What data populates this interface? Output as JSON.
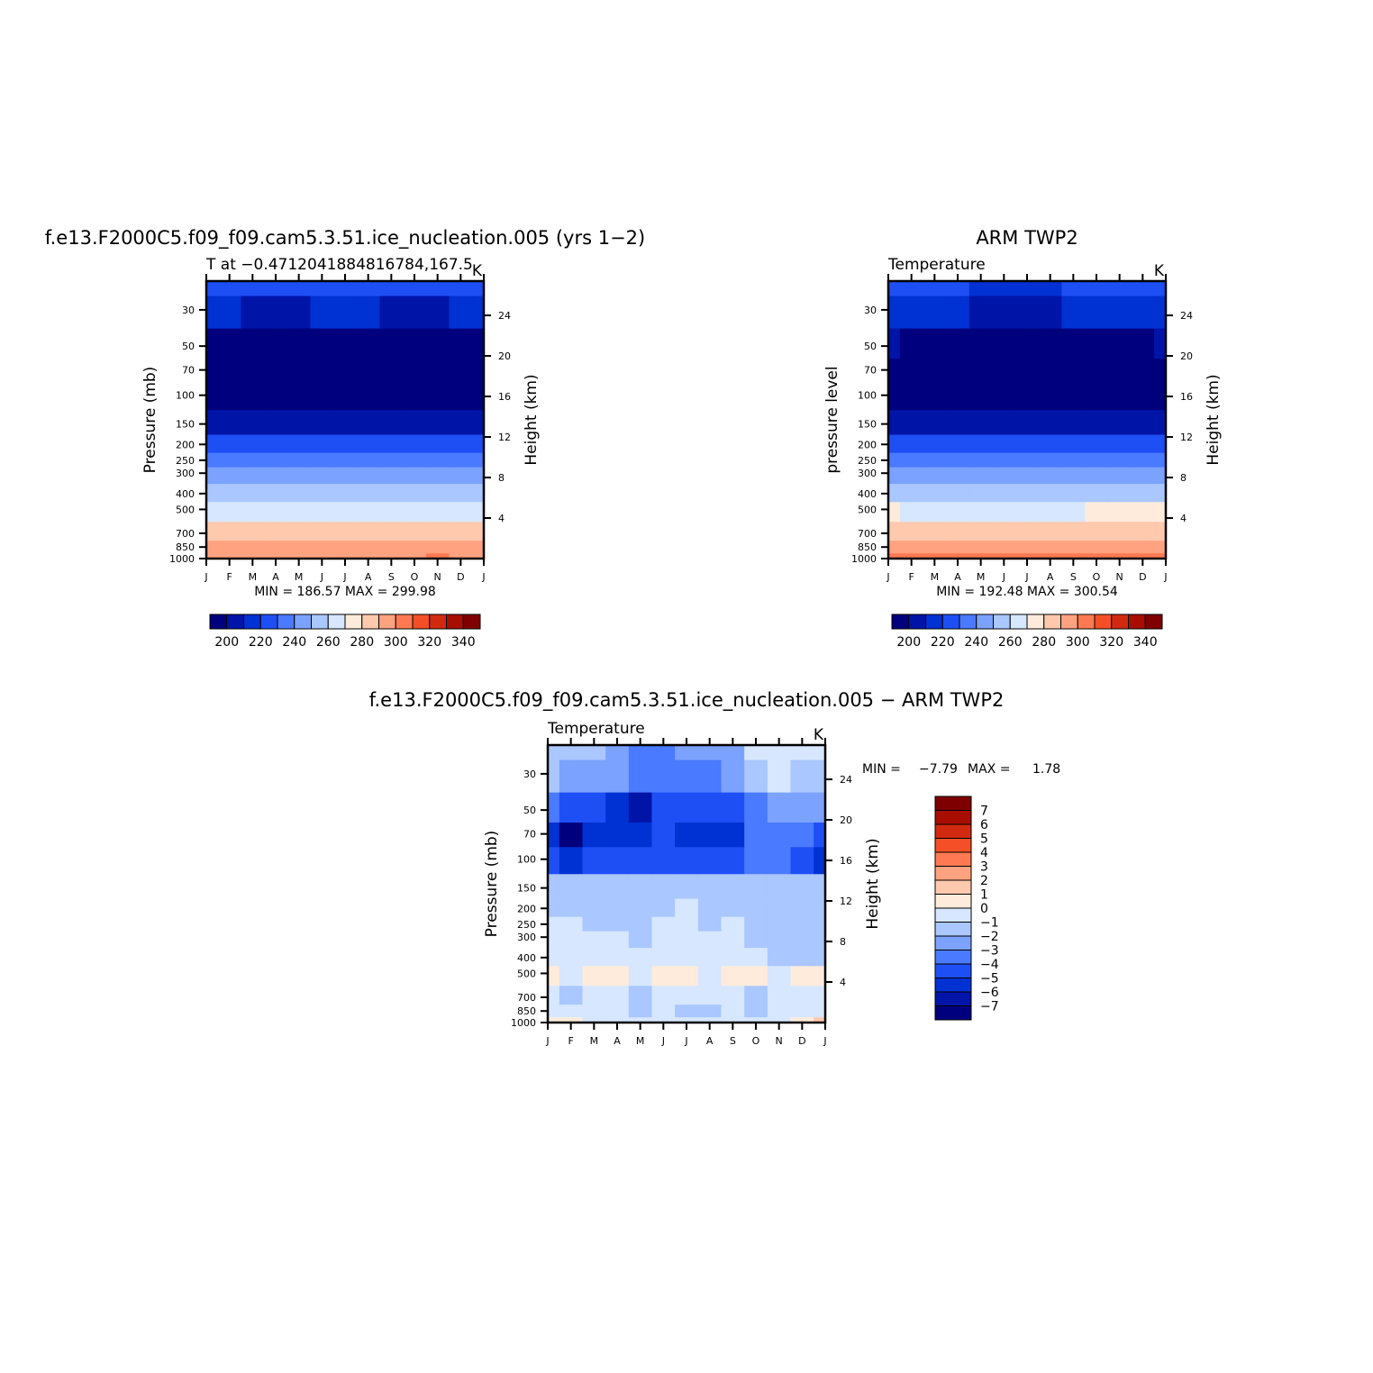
{
  "palette": {
    "temperature": [
      "#00007f",
      "#0015a8",
      "#0031d2",
      "#1e4ff5",
      "#4a7aff",
      "#7ba2ff",
      "#aac7ff",
      "#d6e7ff",
      "#ffebdb",
      "#ffc9ad",
      "#ffa27f",
      "#ff7a52",
      "#f44f26",
      "#d12a11",
      "#a80e00",
      "#7f0000"
    ],
    "difference": [
      "#00007f",
      "#0015a8",
      "#0031d2",
      "#1e4ff5",
      "#4a7aff",
      "#7ba2ff",
      "#aac7ff",
      "#d6e7ff",
      "#ffebdb",
      "#ffc9ad",
      "#ffa27f",
      "#ff7a52",
      "#f44f26",
      "#d12a11",
      "#a80e00",
      "#7f0000"
    ]
  },
  "chart_data": [
    {
      "type": "heatmap",
      "title": "f.e13.F2000C5.f09_f09.cam5.3.51.ice_nucleation.005 (yrs 1−2)",
      "subtitle_left": "T at −0.4712041884816784,167.5",
      "subtitle_right": "K",
      "xlabel": "",
      "ylabel": "Pressure (mb)",
      "ylabel_right": "Height (km)",
      "x_ticks": [
        "J",
        "F",
        "M",
        "A",
        "M",
        "J",
        "J",
        "A",
        "S",
        "O",
        "N",
        "D",
        "J"
      ],
      "y_ticks": [
        "30",
        "50",
        "70",
        "100",
        "150",
        "200",
        "250",
        "300",
        "400",
        "500",
        "700",
        "850",
        "1000"
      ],
      "y_ticks_right": [
        "24",
        "20",
        "16",
        "12",
        "8",
        "4"
      ],
      "x": [
        0,
        1,
        2,
        3,
        4,
        5,
        6,
        7,
        8,
        9,
        10,
        11,
        12
      ],
      "y": [
        1000,
        850,
        700,
        500,
        400,
        300,
        250,
        200,
        150,
        100,
        70,
        50,
        30,
        20
      ],
      "values": [
        [
          299.98,
          299.9,
          299.8,
          299.7,
          299.6,
          299.6,
          299.7,
          299.8,
          299.8,
          299.9,
          300.0,
          299.9,
          299.98
        ],
        [
          294,
          293.8,
          293.6,
          293.5,
          293.4,
          293.4,
          293.5,
          293.6,
          293.7,
          293.8,
          293.9,
          293.9,
          294
        ],
        [
          285,
          284.8,
          284.7,
          284.6,
          284.5,
          284.5,
          284.6,
          284.7,
          284.8,
          284.9,
          285,
          285,
          285
        ],
        [
          268,
          267.9,
          267.8,
          267.7,
          267.7,
          267.6,
          267.7,
          267.8,
          267.9,
          268,
          268,
          268,
          268
        ],
        [
          257,
          256.9,
          256.8,
          256.7,
          256.6,
          256.6,
          256.7,
          256.8,
          256.9,
          257,
          257,
          257,
          257
        ],
        [
          242,
          241.9,
          241.8,
          241.7,
          241.6,
          241.6,
          241.7,
          241.8,
          241.9,
          242,
          242,
          242,
          242
        ],
        [
          233,
          232.9,
          232.8,
          232.7,
          232.6,
          232.6,
          232.7,
          232.8,
          232.9,
          233,
          233,
          233,
          233
        ],
        [
          222,
          221.9,
          221.8,
          221.7,
          221.6,
          221.6,
          221.7,
          221.8,
          221.9,
          222,
          222,
          222,
          222
        ],
        [
          207,
          206.8,
          206.6,
          206.5,
          206.4,
          206.4,
          206.5,
          206.6,
          206.7,
          206.8,
          206.9,
          207,
          207
        ],
        [
          190,
          189.5,
          189,
          188.5,
          188,
          187.5,
          187,
          186.8,
          186.57,
          187,
          188,
          189,
          190
        ],
        [
          192,
          191,
          190,
          189.5,
          189,
          188.5,
          188.5,
          188.2,
          188,
          188.5,
          189,
          190,
          192
        ],
        [
          197,
          196,
          195.5,
          195,
          195,
          195.5,
          196,
          196.5,
          196.8,
          196.5,
          196,
          195.5,
          197
        ],
        [
          212,
          210,
          209,
          209,
          209.5,
          210,
          210.5,
          210,
          209.5,
          209,
          209.5,
          210,
          212
        ],
        [
          222,
          221,
          220,
          220,
          220.5,
          221,
          221.5,
          221,
          220.5,
          220,
          220.5,
          221,
          222
        ]
      ],
      "min": "MIN = 186.57",
      "max": "MAX = 299.98",
      "colorbar_ticks": [
        "200",
        "220",
        "240",
        "260",
        "280",
        "300",
        "320",
        "340"
      ],
      "colorbar_orientation": "horizontal"
    },
    {
      "type": "heatmap",
      "title": "ARM TWP2",
      "subtitle_left": "Temperature",
      "subtitle_right": "K",
      "xlabel": "",
      "ylabel": "pressure level",
      "ylabel_right": "Height (km)",
      "x_ticks": [
        "J",
        "F",
        "M",
        "A",
        "M",
        "J",
        "J",
        "A",
        "S",
        "O",
        "N",
        "D",
        "J"
      ],
      "y_ticks": [
        "30",
        "50",
        "70",
        "100",
        "150",
        "200",
        "250",
        "300",
        "400",
        "500",
        "700",
        "850",
        "1000"
      ],
      "y_ticks_right": [
        "24",
        "20",
        "16",
        "12",
        "8",
        "4"
      ],
      "x": [
        0,
        1,
        2,
        3,
        4,
        5,
        6,
        7,
        8,
        9,
        10,
        11,
        12
      ],
      "y": [
        1000,
        850,
        700,
        500,
        400,
        300,
        250,
        200,
        150,
        100,
        70,
        50,
        30,
        20
      ],
      "values": [
        [
          300.54,
          300.4,
          300.3,
          300.1,
          300.0,
          300.0,
          300.1,
          300.2,
          300.3,
          300.4,
          300.5,
          300.5,
          300.54
        ],
        [
          295,
          294.8,
          294.6,
          294.5,
          294.5,
          294.4,
          294.5,
          294.6,
          294.7,
          294.8,
          294.9,
          295,
          295
        ],
        [
          286,
          285.8,
          285.7,
          285.6,
          285.5,
          285.5,
          285.6,
          285.7,
          285.8,
          285.9,
          286,
          286,
          286
        ],
        [
          270,
          269.9,
          269.8,
          269.7,
          269.7,
          269.6,
          269.7,
          269.8,
          269.9,
          270,
          270,
          270,
          270
        ],
        [
          259,
          258.9,
          258.8,
          258.7,
          258.6,
          258.6,
          258.7,
          258.8,
          258.9,
          259,
          259,
          259,
          259
        ],
        [
          244,
          243.9,
          243.8,
          243.7,
          243.6,
          243.6,
          243.7,
          243.8,
          243.9,
          244,
          244,
          244,
          244
        ],
        [
          235,
          234.9,
          234.8,
          234.7,
          234.6,
          234.6,
          234.7,
          234.8,
          234.9,
          235,
          235,
          235,
          235
        ],
        [
          224,
          223.9,
          223.8,
          223.7,
          223.6,
          223.6,
          223.7,
          223.8,
          223.9,
          224,
          224,
          224,
          224
        ],
        [
          209,
          208.8,
          208.6,
          208.5,
          208.4,
          208.4,
          208.5,
          208.6,
          208.7,
          208.8,
          208.9,
          209,
          209
        ],
        [
          195,
          194.5,
          194,
          193.5,
          193,
          192.8,
          192.48,
          192.6,
          193,
          193.5,
          194,
          194.5,
          195
        ],
        [
          196,
          195.5,
          195,
          194.5,
          194,
          193.5,
          193.2,
          193,
          193.5,
          194,
          195,
          195.5,
          196
        ],
        [
          200,
          199.5,
          199,
          198.5,
          198,
          197.8,
          197.5,
          197.5,
          198,
          198.5,
          199,
          199.5,
          200
        ],
        [
          212,
          211,
          210.5,
          210,
          209.5,
          209,
          209,
          209.5,
          210,
          210.5,
          211,
          211.5,
          212
        ],
        [
          222,
          221,
          220.5,
          220,
          219.5,
          219,
          219,
          219.5,
          220,
          220.5,
          221,
          221.5,
          222
        ]
      ],
      "min": "MIN = 192.48",
      "max": "MAX = 300.54",
      "colorbar_ticks": [
        "200",
        "220",
        "240",
        "260",
        "280",
        "300",
        "320",
        "340"
      ],
      "colorbar_orientation": "horizontal"
    },
    {
      "type": "heatmap",
      "title": "f.e13.F2000C5.f09_f09.cam5.3.51.ice_nucleation.005 − ARM TWP2",
      "subtitle_left": "Temperature",
      "subtitle_right": "K",
      "xlabel": "",
      "ylabel": "Pressure (mb)",
      "ylabel_right": "Height (km)",
      "x_ticks": [
        "J",
        "F",
        "M",
        "A",
        "M",
        "J",
        "J",
        "A",
        "S",
        "O",
        "N",
        "D",
        "J"
      ],
      "y_ticks": [
        "30",
        "50",
        "70",
        "100",
        "150",
        "200",
        "250",
        "300",
        "400",
        "500",
        "700",
        "850",
        "1000"
      ],
      "y_ticks_right": [
        "24",
        "20",
        "16",
        "12",
        "8",
        "4"
      ],
      "x": [
        0,
        1,
        2,
        3,
        4,
        5,
        6,
        7,
        8,
        9,
        10,
        11,
        12
      ],
      "y": [
        1000,
        850,
        700,
        500,
        400,
        300,
        250,
        200,
        150,
        100,
        70,
        50,
        30,
        20
      ],
      "values": [
        [
          0.3,
          0.5,
          -0.5,
          -0.5,
          -0.8,
          -0.6,
          -0.7,
          -0.5,
          -0.8,
          -0.5,
          -0.5,
          0.2,
          1.78
        ],
        [
          -0.5,
          -0.8,
          -0.4,
          -0.8,
          -1.2,
          -0.6,
          -1.2,
          -1.1,
          -0.7,
          -1.3,
          -0.6,
          -0.5,
          -0.3
        ],
        [
          -0.5,
          -1.2,
          -0.7,
          -0.7,
          -1.6,
          -0.8,
          -0.6,
          -0.8,
          -0.9,
          -1.3,
          -0.7,
          -0.6,
          -0.5
        ],
        [
          0.4,
          -0.5,
          0.5,
          0.2,
          -0.3,
          0.5,
          0.4,
          -0.3,
          0.5,
          0.3,
          -0.4,
          0.4,
          0.6
        ],
        [
          -0.4,
          -0.4,
          -0.3,
          -0.6,
          -1.0,
          -0.5,
          -0.4,
          -0.6,
          -0.5,
          -0.7,
          -1.2,
          -1.3,
          -1.2
        ],
        [
          -0.6,
          -0.5,
          -0.5,
          -0.8,
          -1.2,
          -0.6,
          -0.5,
          -0.7,
          -0.6,
          -1.4,
          -1.6,
          -1.5,
          -1.3
        ],
        [
          -0.7,
          -0.7,
          -1.1,
          -1.1,
          -1.3,
          -0.7,
          -0.6,
          -1.2,
          -0.7,
          -1.5,
          -1.7,
          -1.7,
          -1.5
        ],
        [
          -1.2,
          -1.2,
          -1.2,
          -1.3,
          -1.5,
          -1.1,
          -0.6,
          -1.5,
          -1.4,
          -1.5,
          -1.8,
          -1.7,
          -1.6
        ],
        [
          -1.4,
          -1.3,
          -1.4,
          -1.4,
          -1.6,
          -1.3,
          -1.2,
          -1.6,
          -1.5,
          -1.6,
          -1.8,
          -1.8,
          -1.7
        ],
        [
          -4.5,
          -5.2,
          -4.6,
          -4.8,
          -4.3,
          -4.1,
          -4.5,
          -4.2,
          -4.4,
          -3.8,
          -3.5,
          -4.4,
          -5.2
        ],
        [
          -5.5,
          -7.79,
          -6.0,
          -5.5,
          -5.2,
          -4.6,
          -5.8,
          -5.4,
          -5.2,
          -3.4,
          -3.1,
          -4.0,
          -5.0
        ],
        [
          -3.5,
          -4.5,
          -4.3,
          -5.5,
          -6.5,
          -4.8,
          -4.5,
          -4.5,
          -4.8,
          -3.2,
          -2.5,
          -2.8,
          -3.0
        ],
        [
          -2.0,
          -2.5,
          -2.5,
          -3.0,
          -3.8,
          -3.8,
          -3.5,
          -3.6,
          -3.0,
          -1.8,
          -0.5,
          -1.5,
          -1.2
        ],
        [
          -1.5,
          -1.8,
          -2.0,
          -2.5,
          -3.2,
          -3.2,
          -3.0,
          -3.0,
          -2.5,
          -1.0,
          -0.2,
          -1.0,
          -0.8
        ]
      ],
      "min": "MIN =",
      "min_value": "−7.79",
      "max": "MAX =",
      "max_value": "1.78",
      "colorbar_ticks": [
        "7",
        "6",
        "5",
        "4",
        "3",
        "2",
        "1",
        "0",
        "−1",
        "−2",
        "−3",
        "−4",
        "−5",
        "−6",
        "−7"
      ],
      "colorbar_orientation": "vertical"
    }
  ]
}
